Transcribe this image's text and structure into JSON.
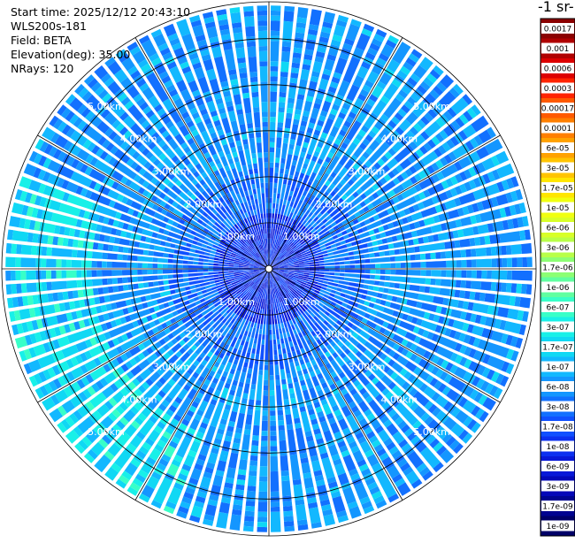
{
  "header": {
    "start_time": "Start time: 2025/12/12 20:43:10",
    "instrument": "WLS200s-181",
    "field": "Field: BETA",
    "elevation": "Elevation(deg): 35.00",
    "nrays": "NRays: 120"
  },
  "colorbar": {
    "unit_label": "-1 sr-",
    "labels": [
      "0.0017",
      "0.001",
      "0.0006",
      "0.0003",
      "0.00017",
      "0.0001",
      "6e-05",
      "3e-05",
      "1.7e-05",
      "1e-05",
      "6e-06",
      "3e-06",
      "1.7e-06",
      "1e-06",
      "6e-07",
      "3e-07",
      "1.7e-07",
      "1e-07",
      "6e-08",
      "3e-08",
      "1.7e-08",
      "1e-08",
      "6e-09",
      "3e-09",
      "1.7e-09",
      "1e-09"
    ],
    "colors": [
      "#8b0000",
      "#b00000",
      "#dd0000",
      "#ff2400",
      "#ff5a00",
      "#ff7f00",
      "#ffa200",
      "#ffc400",
      "#ffe600",
      "#f0ff10",
      "#d8ff28",
      "#b8ff48",
      "#8cff74",
      "#60ffa0",
      "#38ffc8",
      "#18f0e8",
      "#10d8f4",
      "#12b8ff",
      "#1496ff",
      "#1270ff",
      "#1050ff",
      "#0c30f0",
      "#0818d8",
      "#0408b8",
      "#000490",
      "#000068"
    ]
  },
  "chart_data": {
    "type": "ppi-polar",
    "field": "BETA",
    "elevation_deg": 35.0,
    "n_rays": 120,
    "range_rings_km": [
      1.0,
      2.0,
      3.0,
      4.0,
      5.0
    ],
    "ring_labels": [
      "1.00km",
      "2.00km",
      "3.00km",
      "4.00km",
      "5.00km"
    ],
    "max_range_km": 5.8,
    "azimuth_lines_deg": [
      0,
      30,
      60,
      90,
      120,
      150,
      180,
      210,
      240,
      270,
      300,
      330
    ],
    "grid": true,
    "colorscale": "jet, log scale, 1e-09 to 0.0017"
  }
}
